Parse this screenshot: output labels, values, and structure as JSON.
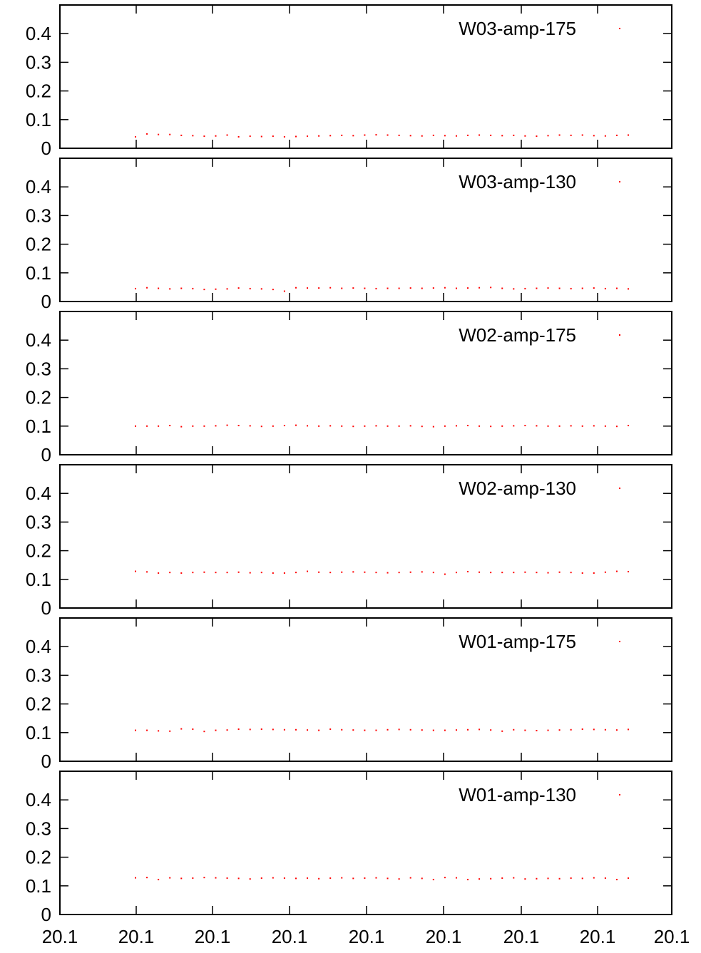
{
  "chart_data": [
    {
      "type": "scatter",
      "legend_position": "top-right",
      "series": [
        {
          "name": "W03-amp-175",
          "color": "#ff0000",
          "values": [
            0.04,
            0.05,
            0.048,
            0.048,
            0.045,
            0.044,
            0.042,
            0.043,
            0.046,
            0.04,
            0.042,
            0.041,
            0.042,
            0.04,
            0.041,
            0.042,
            0.043,
            0.044,
            0.045,
            0.044,
            0.046,
            0.047,
            0.046,
            0.045,
            0.044,
            0.043,
            0.045,
            0.044,
            0.043,
            0.045,
            0.046,
            0.045,
            0.044,
            0.045,
            0.043,
            0.042,
            0.044,
            0.046,
            0.045,
            0.046,
            0.044,
            0.043,
            0.045,
            0.046
          ]
        }
      ],
      "ylim": [
        0,
        0.5
      ],
      "y_ticks": [
        "0",
        "0.1",
        "0.2",
        "0.3",
        "0.4"
      ],
      "grid": false
    },
    {
      "type": "scatter",
      "legend_position": "top-right",
      "series": [
        {
          "name": "W03-amp-130",
          "color": "#ff0000",
          "values": [
            0.045,
            0.048,
            0.046,
            0.044,
            0.046,
            0.045,
            0.042,
            0.043,
            0.044,
            0.047,
            0.045,
            0.044,
            0.042,
            0.036,
            0.048,
            0.047,
            0.047,
            0.048,
            0.046,
            0.047,
            0.046,
            0.045,
            0.046,
            0.046,
            0.047,
            0.046,
            0.047,
            0.048,
            0.046,
            0.047,
            0.048,
            0.049,
            0.046,
            0.044,
            0.045,
            0.046,
            0.047,
            0.046,
            0.045,
            0.046,
            0.047,
            0.045,
            0.046,
            0.044
          ]
        }
      ],
      "ylim": [
        0,
        0.5
      ],
      "y_ticks": [
        "0",
        "0.1",
        "0.2",
        "0.3",
        "0.4"
      ],
      "grid": false
    },
    {
      "type": "scatter",
      "legend_position": "top-right",
      "series": [
        {
          "name": "W02-amp-175",
          "color": "#ff0000",
          "values": [
            0.1,
            0.1,
            0.1,
            0.102,
            0.098,
            0.1,
            0.1,
            0.101,
            0.103,
            0.102,
            0.101,
            0.099,
            0.1,
            0.102,
            0.103,
            0.101,
            0.1,
            0.101,
            0.1,
            0.099,
            0.1,
            0.101,
            0.1,
            0.1,
            0.101,
            0.099,
            0.098,
            0.1,
            0.101,
            0.102,
            0.1,
            0.099,
            0.1,
            0.101,
            0.102,
            0.101,
            0.1,
            0.1,
            0.101,
            0.1,
            0.101,
            0.1,
            0.099,
            0.102
          ]
        }
      ],
      "ylim": [
        0,
        0.5
      ],
      "y_ticks": [
        "0",
        "0.1",
        "0.2",
        "0.3",
        "0.4"
      ],
      "grid": false
    },
    {
      "type": "scatter",
      "legend_position": "top-right",
      "series": [
        {
          "name": "W02-amp-130",
          "color": "#ff0000",
          "values": [
            0.128,
            0.126,
            0.122,
            0.124,
            0.122,
            0.124,
            0.125,
            0.124,
            0.124,
            0.125,
            0.123,
            0.124,
            0.122,
            0.122,
            0.124,
            0.128,
            0.125,
            0.124,
            0.125,
            0.126,
            0.125,
            0.124,
            0.123,
            0.124,
            0.125,
            0.126,
            0.124,
            0.118,
            0.124,
            0.127,
            0.125,
            0.124,
            0.124,
            0.124,
            0.125,
            0.124,
            0.123,
            0.125,
            0.124,
            0.122,
            0.122,
            0.125,
            0.128,
            0.127
          ]
        }
      ],
      "ylim": [
        0,
        0.5
      ],
      "y_ticks": [
        "0",
        "0.1",
        "0.2",
        "0.3",
        "0.4"
      ],
      "grid": false
    },
    {
      "type": "scatter",
      "legend_position": "top-right",
      "series": [
        {
          "name": "W01-amp-175",
          "color": "#ff0000",
          "values": [
            0.108,
            0.108,
            0.106,
            0.105,
            0.113,
            0.112,
            0.104,
            0.108,
            0.109,
            0.112,
            0.111,
            0.112,
            0.111,
            0.11,
            0.11,
            0.109,
            0.108,
            0.112,
            0.11,
            0.109,
            0.108,
            0.108,
            0.11,
            0.111,
            0.11,
            0.109,
            0.108,
            0.108,
            0.109,
            0.11,
            0.111,
            0.109,
            0.105,
            0.11,
            0.108,
            0.107,
            0.108,
            0.109,
            0.11,
            0.112,
            0.111,
            0.11,
            0.109,
            0.111
          ]
        }
      ],
      "ylim": [
        0,
        0.5
      ],
      "y_ticks": [
        "0",
        "0.1",
        "0.2",
        "0.3",
        "0.4"
      ],
      "grid": false
    },
    {
      "type": "scatter",
      "legend_position": "top-right",
      "series": [
        {
          "name": "W01-amp-130",
          "color": "#ff0000",
          "values": [
            0.128,
            0.129,
            0.122,
            0.128,
            0.126,
            0.127,
            0.129,
            0.128,
            0.127,
            0.126,
            0.124,
            0.127,
            0.128,
            0.127,
            0.126,
            0.127,
            0.125,
            0.127,
            0.128,
            0.126,
            0.127,
            0.128,
            0.126,
            0.124,
            0.128,
            0.126,
            0.122,
            0.129,
            0.128,
            0.122,
            0.124,
            0.125,
            0.127,
            0.128,
            0.124,
            0.125,
            0.126,
            0.125,
            0.127,
            0.126,
            0.128,
            0.127,
            0.122,
            0.127
          ]
        }
      ],
      "ylim": [
        0,
        0.5
      ],
      "y_ticks": [
        "0",
        "0.1",
        "0.2",
        "0.3",
        "0.4"
      ],
      "grid": false
    }
  ],
  "x_axis": {
    "tick_labels": [
      "20.1",
      "20.1",
      "20.1",
      "20.1",
      "20.1",
      "20.1",
      "20.1",
      "20.1",
      "20.1"
    ]
  }
}
